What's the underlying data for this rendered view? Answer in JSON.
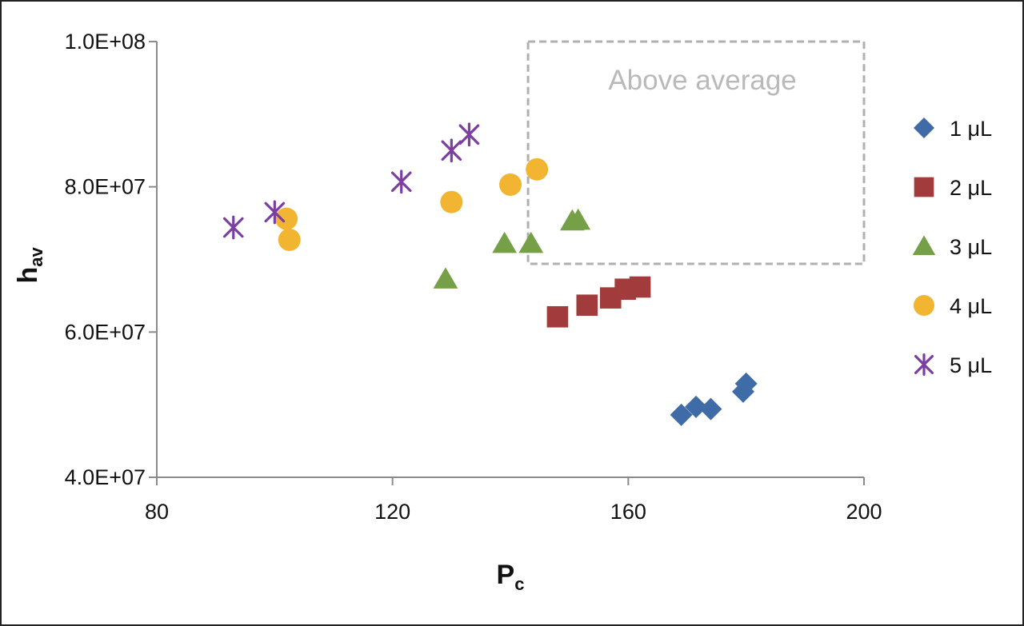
{
  "chart_data": {
    "type": "scatter",
    "xlabel": {
      "main": "P",
      "sub": "c"
    },
    "ylabel": {
      "main": "h",
      "sub": "av"
    },
    "xlim": [
      80,
      200
    ],
    "ylim": [
      40000000,
      100000000
    ],
    "x_ticks": [
      80,
      120,
      160,
      200
    ],
    "x_tick_labels": [
      "80",
      "120",
      "160",
      "200"
    ],
    "y_ticks": [
      40000000,
      60000000,
      80000000,
      100000000
    ],
    "y_tick_labels": [
      "4.0E+07",
      "6.0E+07",
      "8.0E+07",
      "1.0E+08"
    ],
    "grid": false,
    "legend_position": "right",
    "annotation": {
      "text": "Above average",
      "x_range": [
        143,
        200
      ],
      "y_range": [
        69400000,
        100000000
      ]
    },
    "series": [
      {
        "name": "1 μL",
        "marker": "diamond",
        "color": "#3F6CA6",
        "points": [
          [
            169,
            48600000
          ],
          [
            171.5,
            49700000
          ],
          [
            174,
            49400000
          ],
          [
            179.5,
            51800000
          ],
          [
            180,
            52900000
          ]
        ]
      },
      {
        "name": "2 μL",
        "marker": "square",
        "color": "#A23B3B",
        "points": [
          [
            148,
            62100000
          ],
          [
            153,
            63700000
          ],
          [
            157,
            64700000
          ],
          [
            159.5,
            65900000
          ],
          [
            162,
            66200000
          ]
        ]
      },
      {
        "name": "3 μL",
        "marker": "triangle",
        "color": "#76A047",
        "points": [
          [
            129,
            67300000
          ],
          [
            139,
            72200000
          ],
          [
            143.5,
            72200000
          ],
          [
            150.5,
            75300000
          ],
          [
            151.5,
            75400000
          ]
        ]
      },
      {
        "name": "4 μL",
        "marker": "circle",
        "color": "#F1B531",
        "points": [
          [
            102,
            75600000
          ],
          [
            102.5,
            72700000
          ],
          [
            130,
            77900000
          ],
          [
            140,
            80300000
          ],
          [
            144.5,
            82400000
          ]
        ]
      },
      {
        "name": "5 μL",
        "marker": "asterisk",
        "color": "#7B3FA0",
        "points": [
          [
            93,
            74400000
          ],
          [
            100,
            76500000
          ],
          [
            121.5,
            80700000
          ],
          [
            130,
            85000000
          ],
          [
            133,
            87200000
          ]
        ]
      }
    ]
  }
}
